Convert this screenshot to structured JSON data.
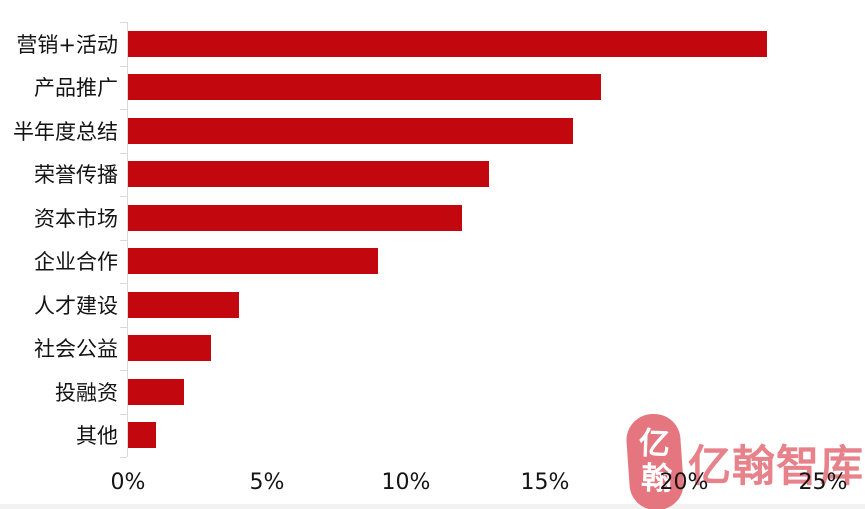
{
  "chart_data": {
    "type": "bar",
    "orientation": "horizontal",
    "title": "",
    "xlabel": "",
    "ylabel": "",
    "categories": [
      "营销+活动",
      "产品推广",
      "半年度总结",
      "荣誉传播",
      "资本市场",
      "企业合作",
      "人才建设",
      "社会公益",
      "投融资",
      "其他"
    ],
    "values": [
      23,
      17,
      16,
      13,
      12,
      9,
      4,
      3,
      2,
      1
    ],
    "value_unit": "%",
    "xlim": [
      0,
      25
    ],
    "x_tick_values": [
      0,
      5,
      10,
      15,
      20,
      25
    ],
    "x_tick_labels": [
      "0%",
      "5%",
      "10%",
      "15%",
      "20%",
      "25%"
    ],
    "grid": false,
    "legend": "none",
    "bar_color": "#c2070f",
    "axis_line_color": "#d9d9d9",
    "text_color": "#141414"
  },
  "watermark": {
    "seal_chars": [
      "亿",
      "翰"
    ],
    "text": "亿翰智库",
    "seal_color": "#e5767f",
    "text_color": "#e8828a"
  }
}
